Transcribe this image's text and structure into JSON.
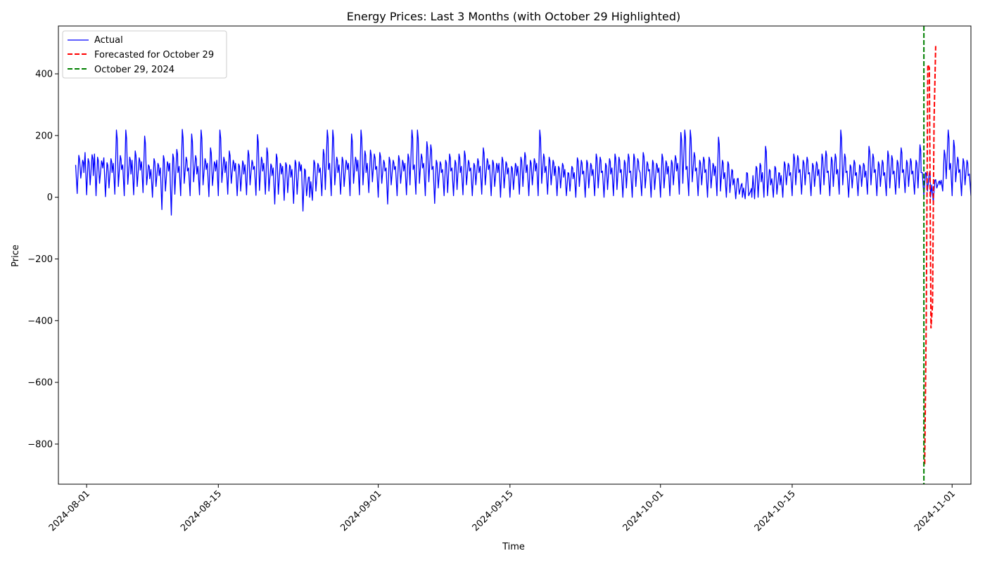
{
  "chart_data": {
    "type": "line",
    "title": "Energy Prices: Last 3 Months (with October 29 Highlighted)",
    "xlabel": "Time",
    "ylabel": "Price",
    "xlim": [
      "2024-07-29",
      "2024-11-03"
    ],
    "ylim": [
      -930,
      555
    ],
    "x_ticks": [
      "2024-08-01",
      "2024-08-15",
      "2024-09-01",
      "2024-09-15",
      "2024-10-01",
      "2024-10-15",
      "2024-11-01"
    ],
    "y_ticks": [
      -800,
      -600,
      -400,
      -200,
      0,
      200,
      400
    ],
    "grid": false,
    "legend_position": "upper-left",
    "series": [
      {
        "name": "Actual",
        "color": "#0000ff",
        "style": "solid",
        "daily": [
          [
            105,
            12,
            136,
            62,
            120,
            80
          ],
          [
            145,
            8,
            125,
            40,
            138,
            70
          ],
          [
            140,
            5,
            130,
            45,
            118,
            95
          ],
          [
            128,
            2,
            112,
            30,
            125,
            80
          ],
          [
            110,
            10,
            218,
            35,
            135,
            90
          ],
          [
            105,
            5,
            218,
            42,
            130,
            75
          ],
          [
            120,
            8,
            150,
            35,
            128,
            88
          ],
          [
            115,
            15,
            198,
            40,
            105,
            60
          ],
          [
            90,
            0,
            125,
            35,
            110,
            70
          ],
          [
            95,
            -40,
            135,
            20,
            115,
            85
          ],
          [
            110,
            -58,
            140,
            10,
            155,
            80
          ],
          [
            100,
            5,
            220,
            45,
            130,
            85
          ],
          [
            95,
            5,
            205,
            50,
            135,
            75
          ],
          [
            100,
            8,
            218,
            40,
            125,
            90
          ],
          [
            110,
            2,
            160,
            38,
            115,
            85
          ],
          [
            120,
            5,
            218,
            48,
            130,
            80
          ],
          [
            115,
            10,
            150,
            45,
            120,
            85
          ],
          [
            110,
            5,
            108,
            20,
            118,
            75
          ],
          [
            105,
            8,
            152,
            40,
            120,
            90
          ],
          [
            100,
            6,
            203,
            22,
            130,
            85
          ],
          [
            110,
            10,
            160,
            20,
            108,
            70
          ],
          [
            95,
            -22,
            140,
            10,
            110,
            75
          ],
          [
            100,
            -10,
            112,
            15,
            105,
            65
          ],
          [
            90,
            -20,
            120,
            10,
            115,
            85
          ],
          [
            105,
            -45,
            92,
            5,
            65,
            0
          ],
          [
            50,
            -10,
            120,
            20,
            110,
            80
          ],
          [
            95,
            5,
            155,
            25,
            218,
            90
          ],
          [
            110,
            5,
            218,
            40,
            130,
            80
          ],
          [
            105,
            10,
            130,
            35,
            120,
            90
          ],
          [
            110,
            5,
            205,
            45,
            130,
            85
          ],
          [
            120,
            8,
            218,
            40,
            150,
            80
          ],
          [
            110,
            15,
            153,
            50,
            140,
            90
          ],
          [
            100,
            0,
            145,
            45,
            120,
            85
          ],
          [
            95,
            -22,
            130,
            40,
            120,
            90
          ],
          [
            100,
            5,
            135,
            45,
            120,
            85
          ],
          [
            110,
            8,
            140,
            40,
            218,
            90
          ],
          [
            105,
            10,
            218,
            45,
            140,
            95
          ],
          [
            110,
            5,
            180,
            50,
            170,
            90
          ],
          [
            100,
            -20,
            120,
            30,
            115,
            80
          ],
          [
            90,
            5,
            120,
            15,
            140,
            85
          ],
          [
            95,
            5,
            120,
            25,
            140,
            80
          ],
          [
            100,
            8,
            150,
            40,
            120,
            85
          ],
          [
            95,
            5,
            110,
            40,
            125,
            80
          ],
          [
            100,
            10,
            160,
            40,
            125,
            90
          ],
          [
            105,
            5,
            120,
            35,
            110,
            80
          ],
          [
            110,
            0,
            130,
            30,
            115,
            75
          ],
          [
            95,
            0,
            100,
            25,
            110,
            70
          ],
          [
            100,
            10,
            130,
            35,
            145,
            80
          ],
          [
            105,
            5,
            120,
            40,
            125,
            85
          ],
          [
            110,
            5,
            218,
            45,
            140,
            80
          ],
          [
            100,
            10,
            130,
            40,
            120,
            70
          ],
          [
            100,
            5,
            100,
            30,
            110,
            65
          ],
          [
            90,
            5,
            80,
            20,
            100,
            60
          ],
          [
            80,
            0,
            128,
            35,
            120,
            75
          ],
          [
            85,
            0,
            120,
            30,
            110,
            70
          ],
          [
            90,
            5,
            140,
            30,
            130,
            80
          ],
          [
            85,
            0,
            110,
            25,
            125,
            75
          ],
          [
            95,
            5,
            140,
            25,
            130,
            80
          ],
          [
            90,
            0,
            120,
            30,
            140,
            80
          ],
          [
            85,
            0,
            140,
            35,
            125,
            90
          ],
          [
            80,
            5,
            145,
            30,
            115,
            85
          ],
          [
            90,
            0,
            120,
            25,
            110,
            80
          ],
          [
            95,
            0,
            140,
            30,
            118,
            75
          ],
          [
            100,
            5,
            120,
            40,
            135,
            85
          ],
          [
            110,
            10,
            210,
            45,
            218,
            90
          ],
          [
            100,
            5,
            218,
            50,
            145,
            85
          ],
          [
            95,
            5,
            120,
            40,
            130,
            80
          ],
          [
            90,
            0,
            130,
            30,
            110,
            70
          ],
          [
            100,
            5,
            195,
            20,
            120,
            60
          ],
          [
            80,
            0,
            115,
            15,
            90,
            40
          ],
          [
            60,
            -5,
            60,
            10,
            40,
            0
          ],
          [
            30,
            -5,
            80,
            5,
            20,
            0
          ],
          [
            70,
            -5,
            100,
            0,
            110,
            50
          ],
          [
            80,
            0,
            165,
            5,
            90,
            40
          ],
          [
            60,
            0,
            100,
            10,
            80,
            40
          ],
          [
            70,
            0,
            115,
            40,
            110,
            70
          ],
          [
            80,
            5,
            140,
            40,
            135,
            80
          ],
          [
            90,
            10,
            120,
            40,
            130,
            75
          ],
          [
            80,
            5,
            110,
            35,
            115,
            70
          ],
          [
            90,
            10,
            140,
            40,
            150,
            80
          ],
          [
            85,
            5,
            130,
            35,
            140,
            75
          ],
          [
            90,
            10,
            218,
            40,
            140,
            80
          ],
          [
            85,
            0,
            105,
            30,
            120,
            70
          ],
          [
            80,
            5,
            105,
            35,
            110,
            65
          ],
          [
            85,
            10,
            165,
            40,
            140,
            80
          ],
          [
            90,
            5,
            115,
            35,
            120,
            70
          ],
          [
            80,
            5,
            150,
            30,
            135,
            75
          ],
          [
            85,
            10,
            120,
            30,
            160,
            80
          ],
          [
            90,
            15,
            120,
            35,
            125,
            75
          ],
          [
            85,
            10,
            120,
            30,
            170,
            80
          ],
          [
            80,
            5,
            80,
            20,
            80,
            0
          ],
          [
            40,
            -15,
            55,
            30,
            50,
            40
          ],
          [
            55,
            20,
            153,
            60,
            218,
            90
          ],
          [
            110,
            5,
            185,
            50,
            130,
            80
          ],
          [
            90,
            5,
            125,
            40,
            120,
            70
          ],
          [
            75,
            5,
            90,
            30,
            185,
            80
          ],
          [
            100,
            10,
            100,
            40,
            120,
            60
          ],
          [
            90,
            5,
            160,
            40,
            180,
            85
          ],
          [
            80,
            10,
            95,
            40,
            90,
            60
          ],
          [
            75,
            5,
            135,
            40,
            140,
            60
          ],
          [
            70,
            0,
            75,
            15,
            40,
            0
          ],
          [
            70,
            0,
            120,
            40,
            218,
            90
          ],
          [
            110,
            30,
            170,
            40,
            135,
            80
          ],
          [
            110,
            25,
            185,
            60,
            218,
            90
          ],
          [
            110,
            30,
            170,
            60,
            130,
            90
          ],
          [
            100,
            40,
            218,
            60,
            130,
            90
          ],
          [
            110,
            40,
            140,
            60,
            130,
            90
          ],
          [
            100,
            40,
            130,
            60,
            150,
            90
          ]
        ]
      },
      {
        "name": "Forecasted for October 29",
        "color": "#ff0000",
        "style": "dashed",
        "points": [
          -865,
          -400,
          430,
          420,
          -425,
          -350,
          250,
          490
        ]
      },
      {
        "name": "October 29, 2024",
        "color": "#008000",
        "style": "dashed-vertical",
        "x": "2024-10-29"
      }
    ]
  }
}
